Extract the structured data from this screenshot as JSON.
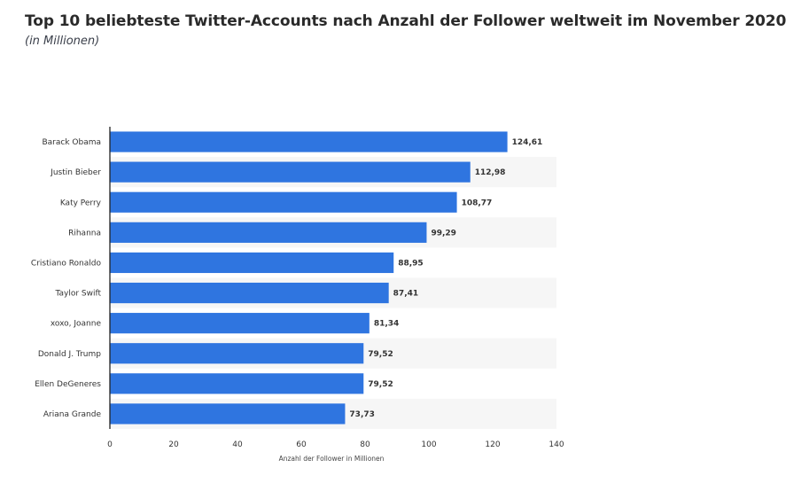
{
  "header": {
    "title": "Top 10 beliebteste Twitter-Accounts nach Anzahl der Follower weltweit im November 2020",
    "subtitle": "(in Millionen)"
  },
  "colors": {
    "bar": "#2f75e0",
    "band": "#f6f6f6",
    "axis": "#222222"
  },
  "chart_data": {
    "type": "bar",
    "orientation": "horizontal",
    "title": "Top 10 beliebteste Twitter-Accounts nach Anzahl der Follower weltweit im November 2020",
    "subtitle": "(in Millionen)",
    "xlabel": "Anzahl der Follower in Millionen",
    "ylabel": "",
    "xlim": [
      0,
      140
    ],
    "xticks": [
      0,
      20,
      40,
      60,
      80,
      100,
      120,
      140
    ],
    "grid": false,
    "categories": [
      "Barack Obama",
      "Justin Bieber",
      "Katy Perry",
      "Rihanna",
      "Cristiano Ronaldo",
      "Taylor Swift",
      "xoxo, Joanne",
      "Donald J. Trump",
      "Ellen DeGeneres",
      "Ariana Grande"
    ],
    "values": [
      124.61,
      112.98,
      108.77,
      99.29,
      88.95,
      87.41,
      81.34,
      79.52,
      79.52,
      73.73
    ],
    "value_labels": [
      "124,61",
      "112,98",
      "108,77",
      "99,29",
      "88,95",
      "87,41",
      "81,34",
      "79,52",
      "79,52",
      "73,73"
    ]
  }
}
